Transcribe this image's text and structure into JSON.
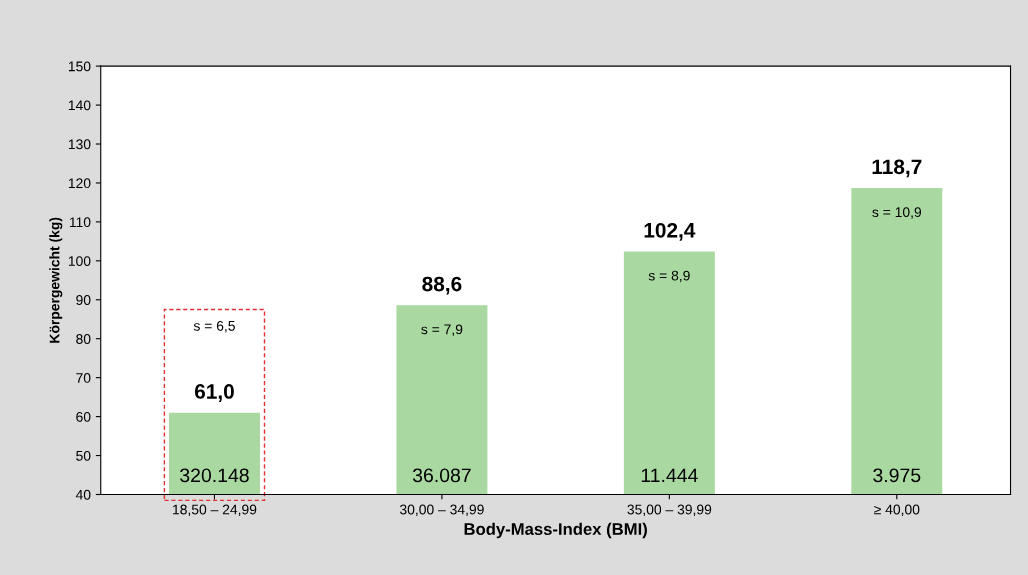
{
  "chart_data": {
    "type": "bar",
    "xlabel": "Body-Mass-Index (BMI)",
    "ylabel": "Körpergewicht (kg)",
    "categories": [
      "18,50 – 24,99",
      "30,00 – 34,99",
      "35,00 – 39,99",
      "≥ 40,00"
    ],
    "values": [
      61.0,
      88.6,
      102.4,
      118.7
    ],
    "color": "#a9d9a0",
    "value_labels": [
      "61,0",
      "88,6",
      "102,4",
      "118,7"
    ],
    "ylim": [
      40,
      150
    ],
    "yticks": [
      40,
      50,
      60,
      70,
      80,
      90,
      100,
      110,
      120,
      130,
      140,
      150
    ],
    "grid": false,
    "legend": false,
    "annotations": [
      "s = 6,5",
      "s = 7,9",
      "s = 8,9",
      "s = 10,9",
      "320.148",
      "36.087",
      "11.444",
      "3.975"
    ]
  }
}
